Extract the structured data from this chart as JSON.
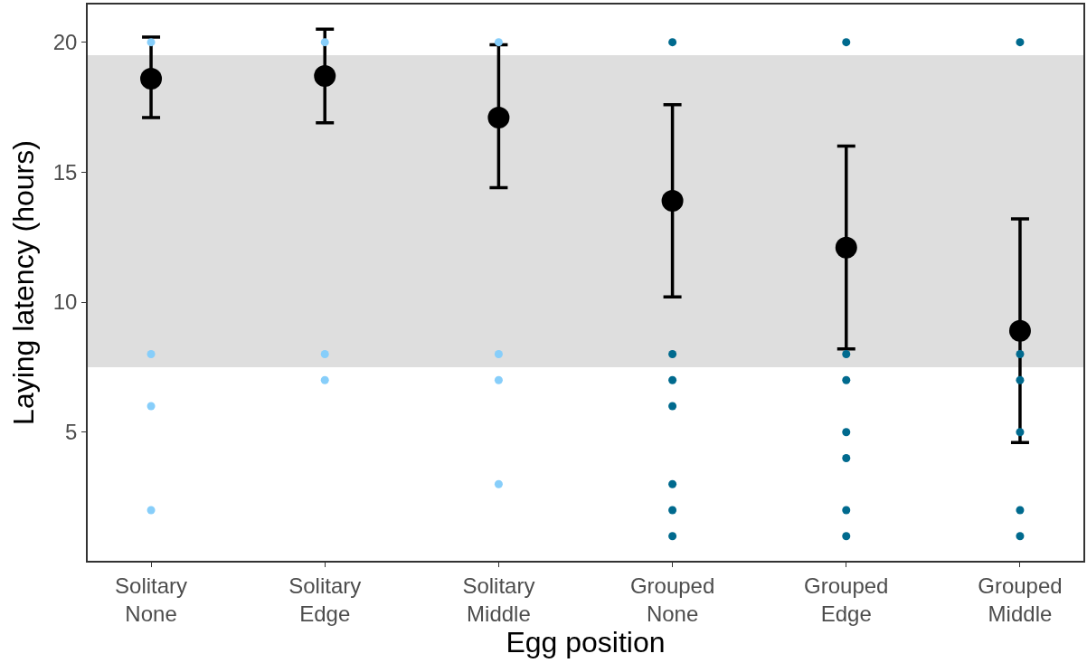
{
  "chart_data": {
    "type": "scatter",
    "xlabel": "Egg position",
    "ylabel": "Laying latency (hours)",
    "categories": [
      "Solitary\nNone",
      "Solitary\nEdge",
      "Solitary\nMiddle",
      "Grouped\nNone",
      "Grouped\nEdge",
      "Grouped\nMiddle"
    ],
    "ylim": [
      0.05,
      21.45
    ],
    "yticks": [
      5,
      10,
      15,
      20
    ],
    "grid": false,
    "bands": [
      {
        "axis": "y",
        "from": 7.5,
        "to": 19.5,
        "color": "#dedede"
      }
    ],
    "series": [
      {
        "color": "#000000",
        "marker": "circle",
        "values": [
          18.6,
          18.7,
          17.1,
          13.9,
          12.1,
          8.9
        ],
        "errors": [
          [
            17.1,
            20.2
          ],
          [
            16.9,
            20.5
          ],
          [
            14.4,
            19.9
          ],
          [
            10.2,
            17.6
          ],
          [
            8.2,
            16.0
          ],
          [
            4.6,
            13.2
          ]
        ]
      },
      {
        "color": "#87cefa",
        "marker": "circle",
        "x": [
          "Solitary\nNone",
          "Solitary\nNone",
          "Solitary\nNone",
          "Solitary\nNone",
          "Solitary\nEdge",
          "Solitary\nEdge",
          "Solitary\nEdge",
          "Solitary\nMiddle",
          "Solitary\nMiddle",
          "Solitary\nMiddle",
          "Solitary\nMiddle"
        ],
        "values": [
          20,
          8,
          6,
          2,
          20,
          8,
          7,
          20,
          8,
          7,
          3
        ]
      },
      {
        "color": "#006a8e",
        "marker": "circle",
        "x": [
          "Grouped\nNone",
          "Grouped\nNone",
          "Grouped\nNone",
          "Grouped\nNone",
          "Grouped\nNone",
          "Grouped\nNone",
          "Grouped\nNone",
          "Grouped\nEdge",
          "Grouped\nEdge",
          "Grouped\nEdge",
          "Grouped\nEdge",
          "Grouped\nEdge",
          "Grouped\nEdge",
          "Grouped\nEdge",
          "Grouped\nMiddle",
          "Grouped\nMiddle",
          "Grouped\nMiddle",
          "Grouped\nMiddle",
          "Grouped\nMiddle",
          "Grouped\nMiddle"
        ],
        "values": [
          20,
          8,
          7,
          6,
          3,
          2,
          1,
          20,
          8,
          7,
          5,
          4,
          2,
          1,
          20,
          8,
          7,
          5,
          2,
          1
        ]
      }
    ]
  }
}
